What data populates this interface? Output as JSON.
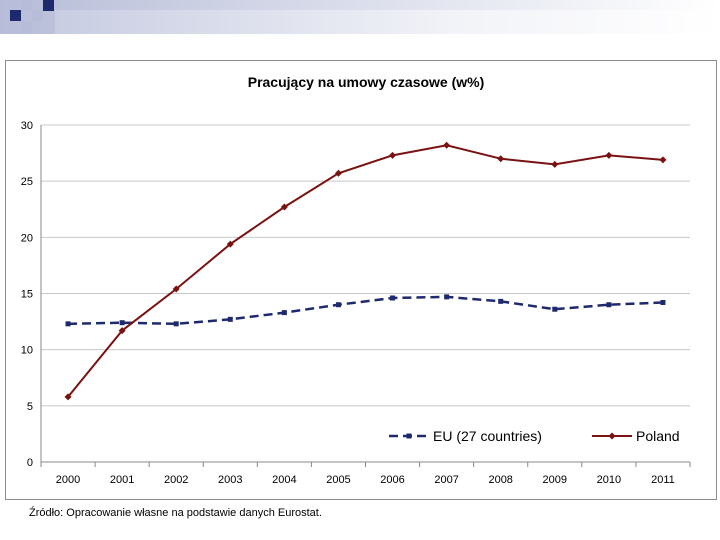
{
  "chart_data": {
    "type": "line",
    "title": "Pracujący na umowy czasowe (w%)",
    "xlabel": "",
    "ylabel": "",
    "categories": [
      "2000",
      "2001",
      "2002",
      "2003",
      "2004",
      "2005",
      "2006",
      "2007",
      "2008",
      "2009",
      "2010",
      "2011"
    ],
    "ylim": [
      0,
      30
    ],
    "yticks": [
      0,
      5,
      10,
      15,
      20,
      25,
      30
    ],
    "grid": true,
    "legend": "bottom-right",
    "series": [
      {
        "name": "EU (27 countries)",
        "color": "#1f2a6e",
        "dashed": true,
        "marker": "square",
        "values": [
          12.3,
          12.4,
          12.3,
          12.7,
          13.3,
          14.0,
          14.6,
          14.7,
          14.3,
          13.6,
          14.0,
          14.2
        ]
      },
      {
        "name": "Poland",
        "color": "#7a1212",
        "dashed": false,
        "marker": "diamond",
        "values": [
          5.8,
          11.7,
          15.4,
          19.4,
          22.7,
          25.7,
          27.3,
          28.2,
          27.0,
          26.5,
          27.3,
          26.9
        ]
      }
    ]
  },
  "footer": {
    "source": "Źródło: Opracowanie własne na podstawie danych Eurostat."
  },
  "colors": {
    "header_dark": "#1f2a6e",
    "header_light": "#b7bdd8"
  }
}
